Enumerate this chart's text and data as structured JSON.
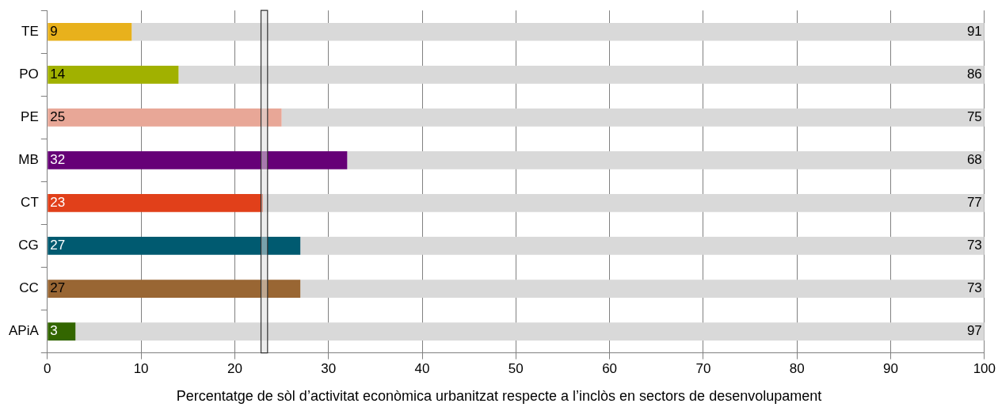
{
  "chart_data": {
    "type": "bar",
    "orientation": "horizontal",
    "stacked": true,
    "xlabel": "Percentatge de sòl d’activitat econòmica urbanitzat respecte a l’inclòs en sectors de desenvolupament",
    "categories": [
      "TE",
      "PO",
      "PE",
      "MB",
      "CT",
      "CG",
      "CC",
      "APiA"
    ],
    "series": [
      {
        "values": [
          9,
          14,
          25,
          32,
          23,
          27,
          27,
          3
        ],
        "colors": [
          "#e8b11c",
          "#a1b100",
          "#e8a797",
          "#660077",
          "#e1401a",
          "#005a70",
          "#996633",
          "#336600"
        ]
      },
      {
        "values": [
          91,
          86,
          75,
          68,
          77,
          73,
          73,
          97
        ],
        "color": "#d9d9d9"
      }
    ],
    "xlim": [
      0,
      100
    ],
    "xticks": [
      0,
      10,
      20,
      30,
      40,
      50,
      60,
      70,
      80,
      90,
      100
    ],
    "grid": "x",
    "legend": false,
    "data_labels": true,
    "bands": [
      {
        "axis": "x",
        "from": 22.8,
        "to": 23.5,
        "color": "#dcdcdc"
      }
    ]
  }
}
